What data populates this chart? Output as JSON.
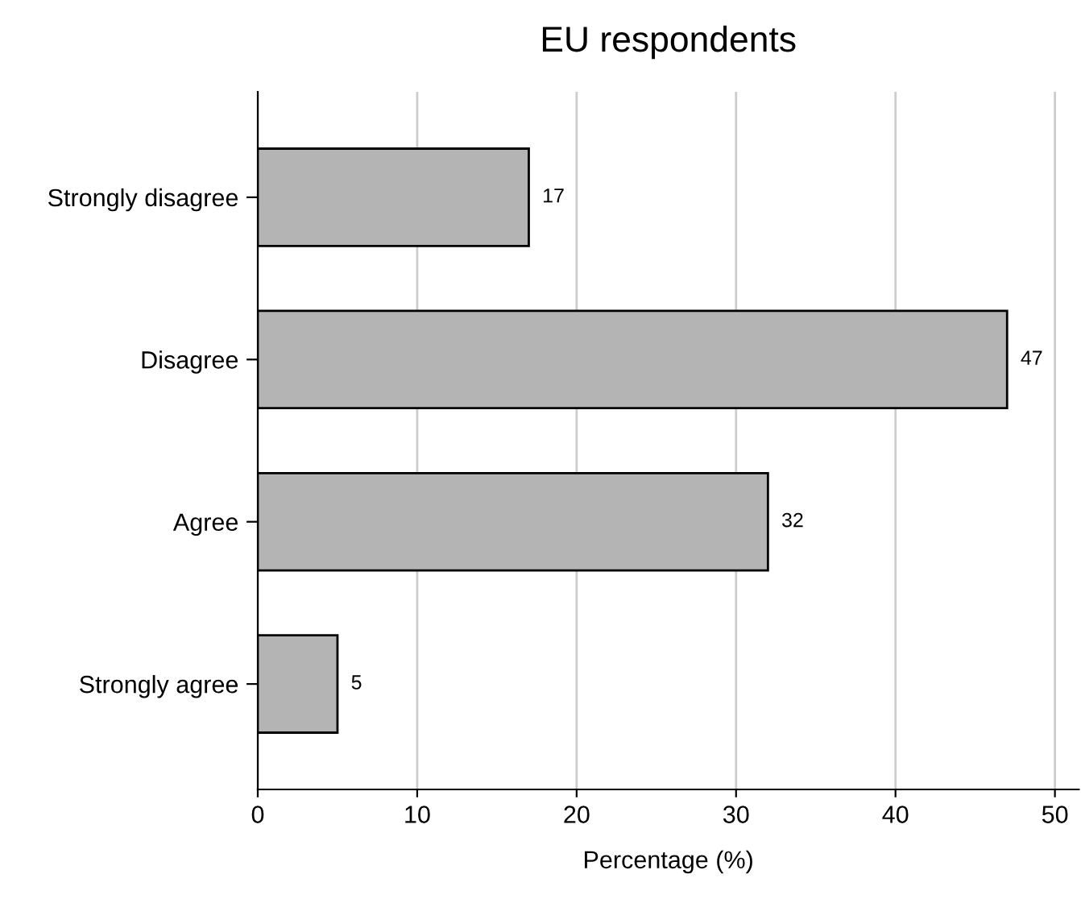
{
  "chart_data": {
    "type": "bar",
    "orientation": "horizontal",
    "title": "EU respondents",
    "xlabel": "Percentage (%)",
    "categories": [
      "Strongly disagree",
      "Disagree",
      "Agree",
      "Strongly agree"
    ],
    "values": [
      17,
      47,
      32,
      5
    ],
    "color": "#b4b4b4",
    "data_labels": true,
    "xlim": [
      0,
      51.5
    ],
    "xticks": [
      0,
      10,
      20,
      30,
      40,
      50
    ],
    "grid": "x",
    "legend": false
  }
}
